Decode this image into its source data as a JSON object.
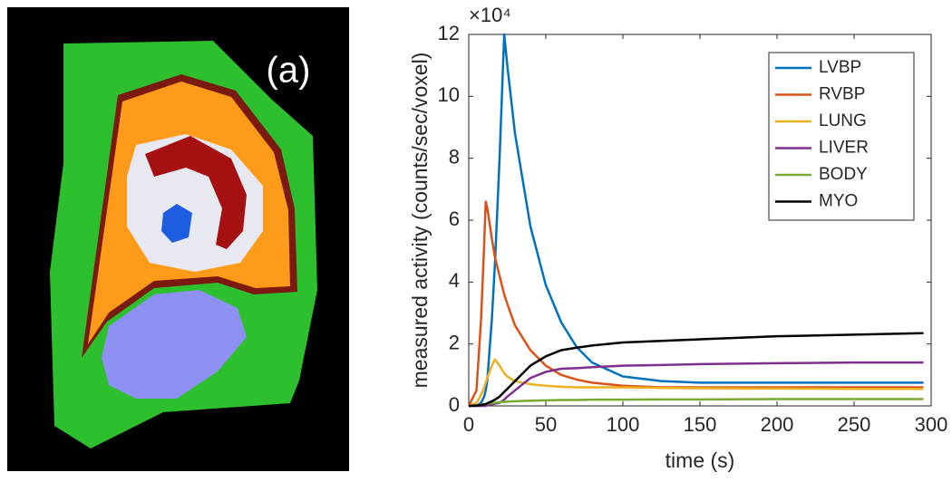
{
  "panel_label": "(a)",
  "chart_data": {
    "type": "line",
    "x_label": "time (s)",
    "y_label": "measured activity (counts/sec/voxel)",
    "y_multiplier": "×10⁴",
    "x": [
      0,
      5,
      8,
      10,
      11,
      12,
      15,
      17,
      20,
      23,
      25,
      30,
      40,
      50,
      60,
      70,
      80,
      100,
      125,
      150,
      200,
      250,
      295
    ],
    "series": [
      {
        "name": "LVBP",
        "color": "#0072bd",
        "values": [
          0,
          0,
          0.1,
          0.3,
          0.5,
          0.8,
          2.8,
          4.6,
          8.0,
          12,
          11,
          8.8,
          5.8,
          3.9,
          2.7,
          1.9,
          1.4,
          0.95,
          0.8,
          0.75,
          0.75,
          0.75,
          0.75
        ]
      },
      {
        "name": "RVBP",
        "color": "#d95319",
        "values": [
          0,
          0.5,
          2.8,
          5.2,
          6.6,
          6.4,
          5.4,
          4.8,
          4.2,
          3.6,
          3.3,
          2.6,
          1.8,
          1.3,
          1.0,
          0.85,
          0.75,
          0.65,
          0.6,
          0.6,
          0.6,
          0.6,
          0.6
        ]
      },
      {
        "name": "LUNG",
        "color": "#edb120",
        "values": [
          0,
          0.1,
          0.35,
          0.6,
          0.75,
          0.9,
          1.3,
          1.5,
          1.3,
          1.05,
          0.95,
          0.8,
          0.7,
          0.65,
          0.62,
          0.6,
          0.6,
          0.6,
          0.58,
          0.57,
          0.56,
          0.55,
          0.55
        ]
      },
      {
        "name": "LIVER",
        "color": "#7e2f8e",
        "values": [
          0,
          0,
          0,
          0,
          0,
          0.02,
          0.05,
          0.07,
          0.1,
          0.2,
          0.3,
          0.5,
          0.9,
          1.1,
          1.2,
          1.22,
          1.25,
          1.3,
          1.32,
          1.35,
          1.38,
          1.4,
          1.4
        ]
      },
      {
        "name": "BODY",
        "color": "#77ac30",
        "values": [
          0,
          0.02,
          0.04,
          0.05,
          0.06,
          0.07,
          0.09,
          0.1,
          0.12,
          0.13,
          0.14,
          0.15,
          0.17,
          0.18,
          0.19,
          0.19,
          0.2,
          0.2,
          0.21,
          0.21,
          0.22,
          0.22,
          0.22
        ]
      },
      {
        "name": "MYO",
        "color": "#000000",
        "values": [
          0,
          0.01,
          0.03,
          0.05,
          0.06,
          0.08,
          0.15,
          0.2,
          0.3,
          0.45,
          0.55,
          0.8,
          1.3,
          1.6,
          1.8,
          1.88,
          1.95,
          2.05,
          2.1,
          2.15,
          2.25,
          2.3,
          2.35
        ]
      }
    ],
    "xlim": [
      0,
      300
    ],
    "xticks": [
      0,
      50,
      100,
      150,
      200,
      250,
      300
    ],
    "ylim": [
      0,
      12
    ],
    "yticks": [
      0,
      2,
      4,
      6,
      8,
      10,
      12
    ],
    "legend": "upper-right"
  }
}
